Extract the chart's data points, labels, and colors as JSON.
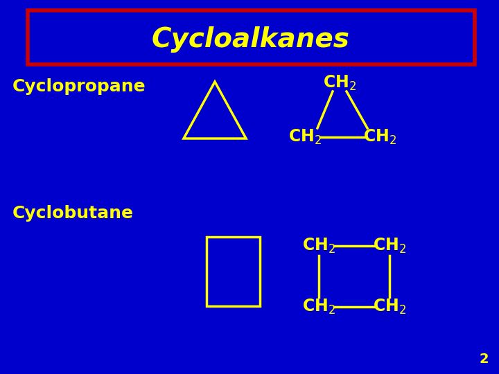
{
  "bg_color": "#0000CC",
  "title": "Cycloalkanes",
  "title_color": "#FFFF00",
  "title_box_color": "#CC0000",
  "title_box_bg": "#0000CC",
  "label_color": "#FFFF00",
  "shape_color": "#FFFF00",
  "cyclopropane_label": "Cyclopropane",
  "cyclobutane_label": "Cyclobutane",
  "page_number": "2",
  "page_number_color": "#FFFF00",
  "title_fontsize": 28,
  "label_fontsize": 18,
  "chem_fontsize": 17
}
